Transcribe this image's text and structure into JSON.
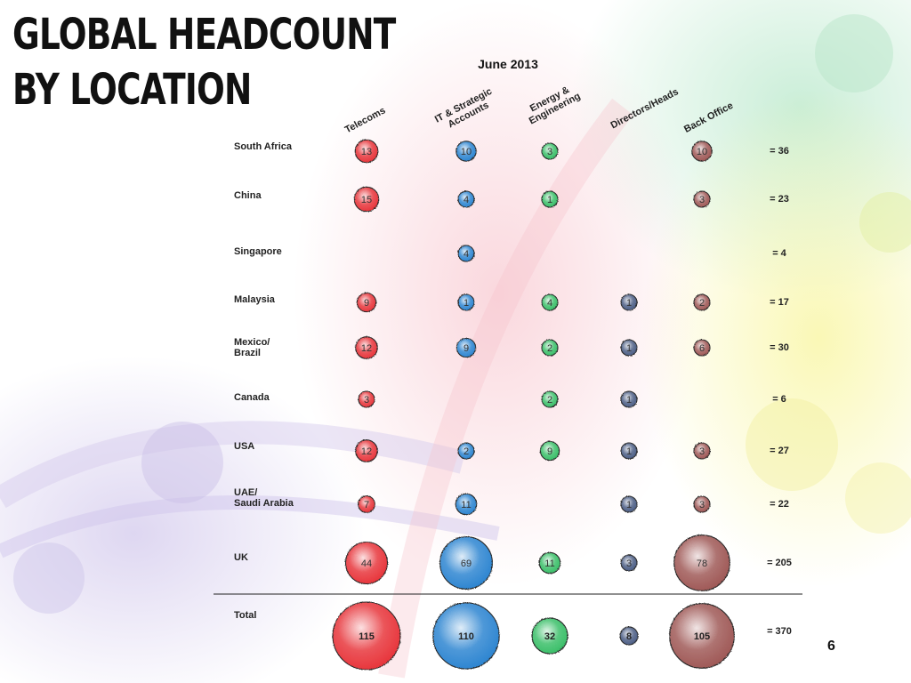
{
  "slide": {
    "title_line1": "GLOBAL HEADCOUNT",
    "title_line2": "BY LOCATION",
    "page_number": "6"
  },
  "chart_data": {
    "type": "bubble",
    "title": "June 2013",
    "columns": [
      "Telecoms",
      "IT & Strategic Accounts",
      "Energy & Engineering",
      "Directors/Heads",
      "Back Office"
    ],
    "column_label_lines": [
      [
        "Telecoms"
      ],
      [
        "IT & Strategic",
        "Accounts"
      ],
      [
        "Energy &",
        "Engineering"
      ],
      [
        "Directors/Heads"
      ],
      [
        "Back Office"
      ]
    ],
    "column_colors": [
      "#e8373d",
      "#2f86d1",
      "#3cbf6a",
      "#4d5f86",
      "#a05a58"
    ],
    "rows": [
      {
        "label": "South Africa",
        "label_lines": [
          "South Africa"
        ],
        "values": [
          13,
          10,
          3,
          null,
          10
        ],
        "total": "= 36"
      },
      {
        "label": "China",
        "label_lines": [
          "China"
        ],
        "values": [
          15,
          4,
          1,
          null,
          3
        ],
        "total": "= 23"
      },
      {
        "label": "Singapore",
        "label_lines": [
          "Singapore"
        ],
        "values": [
          null,
          4,
          null,
          null,
          null
        ],
        "total": "= 4"
      },
      {
        "label": "Malaysia",
        "label_lines": [
          "Malaysia"
        ],
        "values": [
          9,
          1,
          4,
          1,
          2
        ],
        "total": "= 17"
      },
      {
        "label": "Mexico/ Brazil",
        "label_lines": [
          "Mexico/",
          "Brazil"
        ],
        "values": [
          12,
          9,
          2,
          1,
          6
        ],
        "total": "= 30"
      },
      {
        "label": "Canada",
        "label_lines": [
          "Canada"
        ],
        "values": [
          3,
          null,
          2,
          1,
          null
        ],
        "total": "= 6"
      },
      {
        "label": "USA",
        "label_lines": [
          "USA"
        ],
        "values": [
          12,
          2,
          9,
          1,
          3
        ],
        "total": "= 27"
      },
      {
        "label": "UAE/ Saudi Arabia",
        "label_lines": [
          "UAE/",
          "Saudi Arabia"
        ],
        "values": [
          7,
          11,
          null,
          1,
          3
        ],
        "total": "= 22"
      },
      {
        "label": "UK",
        "label_lines": [
          "UK"
        ],
        "values": [
          44,
          69,
          11,
          3,
          78
        ],
        "total": "= 205"
      },
      {
        "label": "Total",
        "label_lines": [
          "Total"
        ],
        "values": [
          115,
          110,
          32,
          8,
          105
        ],
        "total": "= 370"
      }
    ]
  }
}
